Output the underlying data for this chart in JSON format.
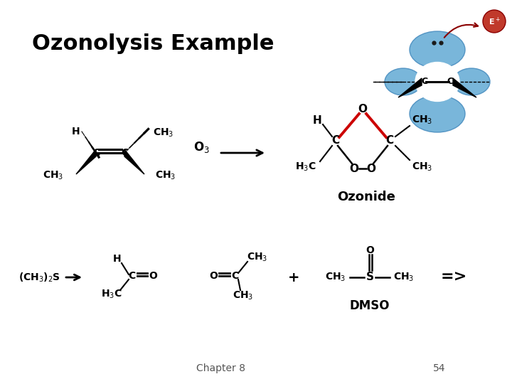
{
  "title": "Ozonolysis Example",
  "title_fontsize": 22,
  "bg_color": "#ffffff",
  "text_color": "#000000",
  "footer_chapter": "Chapter 8",
  "footer_page": "54",
  "ozonide_label": "Ozonide",
  "dmso_label": "DMSO",
  "red_color": "#cc0000",
  "blue_color": "#6aaed6",
  "blue_edge": "#4a8ec0",
  "ep_color": "#c0392b",
  "bond_lw": 2.0,
  "label_fs": 10,
  "subscript_fs": 9
}
